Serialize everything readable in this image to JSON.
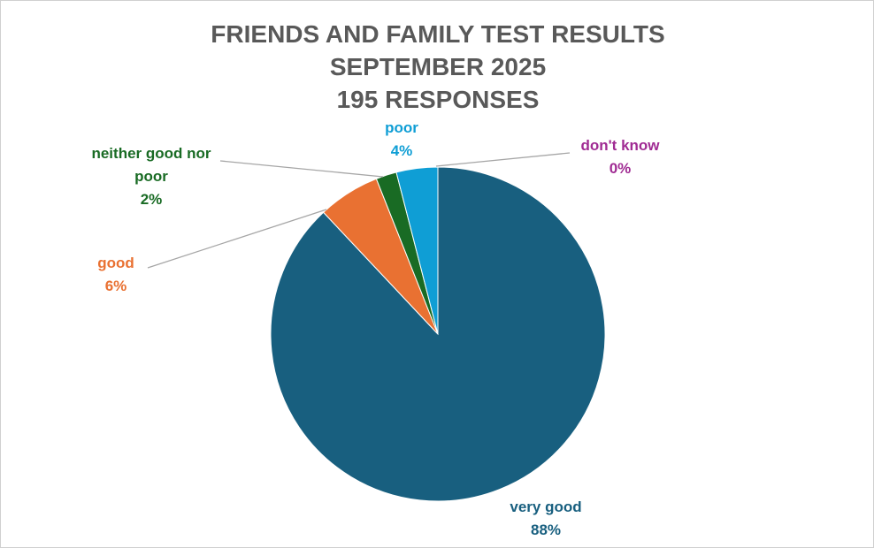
{
  "chart_data": {
    "type": "pie",
    "title": "FRIENDS AND FAMILY TEST RESULTS",
    "subtitle": [
      "SEPTEMBER 2025",
      "195 RESPONSES"
    ],
    "categories": [
      "very good",
      "good",
      "neither good nor poor",
      "poor",
      "don't know"
    ],
    "values": [
      88,
      6,
      2,
      4,
      0
    ],
    "value_labels": [
      "88%",
      "6%",
      "2%",
      "4%",
      "0%"
    ],
    "colors": [
      "#185f7f",
      "#e97132",
      "#196b24",
      "#0f9ed5",
      "#a02b93"
    ]
  }
}
